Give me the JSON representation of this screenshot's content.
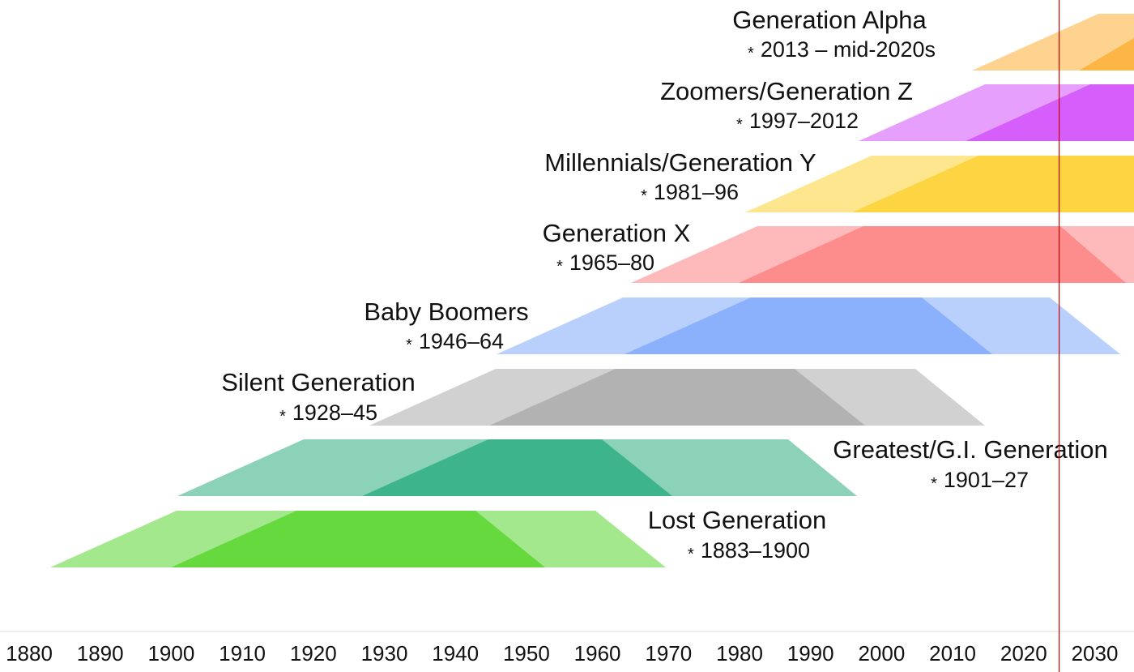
{
  "axis": {
    "ticks": [
      "1880",
      "1890",
      "1900",
      "1910",
      "1920",
      "1930",
      "1940",
      "1950",
      "1960",
      "1970",
      "1980",
      "1990",
      "2000",
      "2010",
      "2020",
      "2030"
    ],
    "range": [
      1880,
      2035
    ],
    "line_color": "#dddddd"
  },
  "marker": {
    "year": 2025,
    "color": "#cc0000"
  },
  "generations": [
    {
      "id": "lost",
      "name": "Lost Generation",
      "star": "*",
      "years": "1883–1900",
      "start": 1883,
      "end": 1900,
      "color": "#66d93f",
      "label_side": "right"
    },
    {
      "id": "greatest",
      "name": "Greatest/G.I. Generation",
      "star": "*",
      "years": "1901–27",
      "start": 1901,
      "end": 1927,
      "color": "#3db48b",
      "label_side": "right"
    },
    {
      "id": "silent",
      "name": "Silent Generation",
      "star": "*",
      "years": "1928–45",
      "start": 1928,
      "end": 1945,
      "color": "#b2b2b2",
      "label_side": "left"
    },
    {
      "id": "boomers",
      "name": "Baby Boomers",
      "star": "*",
      "years": "1946–64",
      "start": 1946,
      "end": 1964,
      "color": "#8bb1fc",
      "label_side": "left"
    },
    {
      "id": "genx",
      "name": "Generation X",
      "star": "*",
      "years": "1965–80",
      "start": 1965,
      "end": 1980,
      "color": "#fd8c8c",
      "label_side": "left"
    },
    {
      "id": "millennials",
      "name": "Millennials/Generation Y",
      "star": "*",
      "years": "1981–96",
      "start": 1981,
      "end": 1996,
      "color": "#fdd542",
      "label_side": "left"
    },
    {
      "id": "genz",
      "name": "Zoomers/Generation Z",
      "star": "*",
      "years": "1997–2012",
      "start": 1997,
      "end": 2012,
      "color": "#d65ffc",
      "label_side": "left"
    },
    {
      "id": "alpha",
      "name": "Generation Alpha",
      "star": "*",
      "years": "2013 – mid-2020s",
      "start": 2013,
      "end": 2025,
      "color": "#fdb545",
      "label_side": "left"
    }
  ]
}
